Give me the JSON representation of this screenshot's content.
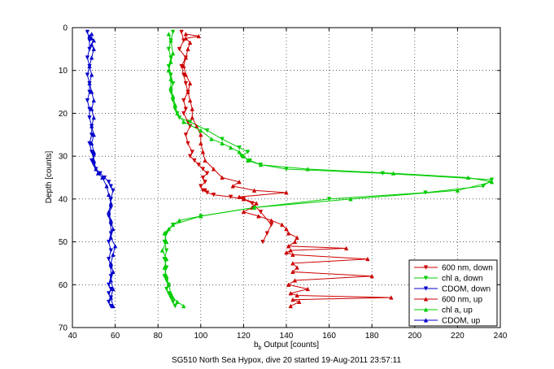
{
  "chart_data": {
    "type": "line",
    "title": "",
    "caption": "SG510 North Sea Hypox, dive 20 started 19-Aug-2011 23:57:11",
    "xlabel_main": "b",
    "xlabel_sub": "b",
    "xlabel_rest": " Output [counts]",
    "ylabel": "Depth [counts]",
    "xlim": [
      40,
      240
    ],
    "ylim": [
      0,
      70
    ],
    "y_reversed": true,
    "grid": true,
    "legend_position": "lower-right",
    "x_ticks": [
      "40",
      "60",
      "80",
      "100",
      "120",
      "140",
      "160",
      "180",
      "200",
      "220",
      "240"
    ],
    "y_ticks": [
      "0",
      "10",
      "20",
      "30",
      "40",
      "50",
      "60",
      "70"
    ],
    "series": [
      {
        "name": "600 nm, down",
        "color": "#cc0000",
        "marker": "triangle-down",
        "x": [
          91,
          92,
          90,
          93,
          91,
          92,
          93,
          94,
          92,
          93,
          92,
          94,
          95,
          93,
          94,
          96,
          95,
          97,
          99,
          101,
          103,
          101,
          102,
          100,
          101,
          102,
          103,
          106,
          114,
          120,
          124,
          128,
          133,
          131,
          129
        ],
        "y": [
          1,
          3,
          5,
          7,
          9,
          11,
          13,
          15,
          17,
          19,
          20,
          22,
          23,
          25,
          27,
          29,
          30,
          31,
          32,
          33,
          34,
          35,
          36,
          37,
          38,
          38,
          38.5,
          39,
          39.5,
          40,
          41,
          43,
          46,
          48,
          50
        ]
      },
      {
        "name": "chl a, down",
        "color": "#00cc00",
        "marker": "triangle-down",
        "x": [
          87,
          86,
          85,
          86,
          85,
          86,
          87,
          86,
          87,
          88,
          89,
          90,
          95,
          103,
          110,
          118,
          122,
          119,
          123,
          128,
          140,
          185,
          236,
          232,
          205,
          160,
          125,
          100,
          87,
          84,
          83,
          84,
          83,
          84,
          83,
          84,
          85,
          84,
          85,
          86,
          87,
          88
        ],
        "y": [
          1,
          3,
          5,
          7,
          9,
          11,
          13,
          15,
          17,
          19,
          20,
          21,
          22,
          24,
          26,
          28,
          29,
          30,
          31,
          32,
          33,
          34,
          35.5,
          37,
          38.5,
          40,
          42,
          44,
          46,
          48,
          50,
          52,
          54,
          56,
          58,
          59,
          60,
          61,
          62,
          63,
          64,
          65
        ]
      },
      {
        "name": "CDOM, down",
        "color": "#0000cc",
        "marker": "triangle-down",
        "x": [
          47,
          48,
          48,
          47,
          48,
          47,
          48,
          48,
          47,
          48,
          48,
          49,
          49,
          48,
          49,
          50,
          49,
          50,
          51,
          53,
          55,
          57,
          58,
          59,
          58,
          58,
          57,
          58,
          58,
          57,
          58,
          57,
          58,
          58,
          57,
          58,
          57,
          58,
          57,
          58
        ],
        "y": [
          1,
          3,
          5,
          7,
          9,
          11,
          13,
          15,
          17,
          19,
          21,
          23,
          25,
          27,
          29,
          30,
          31,
          32,
          33,
          34,
          35,
          36,
          37,
          38,
          40,
          42,
          44,
          46,
          48,
          50,
          52,
          54,
          56,
          58,
          60,
          61,
          62,
          63,
          64,
          65
        ]
      },
      {
        "name": "600 nm, up",
        "color": "#cc0000",
        "marker": "triangle-up",
        "x": [
          142,
          146,
          143,
          189,
          145,
          142,
          150,
          141,
          144,
          180,
          143,
          145,
          143,
          178,
          143,
          140,
          142,
          168,
          141,
          144,
          145,
          141,
          140,
          138,
          133,
          127,
          120,
          124,
          126,
          120,
          118,
          140,
          125,
          115,
          118,
          110,
          106,
          102,
          101,
          100,
          100,
          98,
          96,
          96,
          95,
          94,
          95,
          93,
          92,
          93,
          94,
          95,
          93,
          99,
          93
        ],
        "y": [
          65,
          64,
          63.5,
          63,
          62.5,
          62,
          61,
          60,
          59,
          58,
          57,
          56,
          55,
          54,
          53,
          52.5,
          52,
          51.5,
          51,
          50,
          49,
          48,
          47,
          46,
          45,
          44,
          43,
          42,
          41,
          40,
          39.5,
          38.5,
          38,
          37,
          36,
          35,
          33,
          31,
          29,
          27,
          25,
          23,
          21,
          19,
          17,
          15,
          13,
          11,
          9,
          7,
          5,
          3.5,
          2.5,
          2,
          1.5
        ]
      },
      {
        "name": "chl a, up",
        "color": "#00cc00",
        "marker": "triangle-up",
        "x": [
          92,
          89,
          87,
          86,
          85,
          84,
          83,
          84,
          82,
          84,
          83,
          85,
          87,
          90,
          100,
          125,
          170,
          220,
          236,
          225,
          190,
          150,
          128,
          122,
          120,
          118,
          114,
          110,
          105,
          100,
          92,
          89,
          88,
          87,
          86,
          86,
          85,
          86,
          87,
          86,
          85
        ],
        "y": [
          65,
          64,
          63,
          62,
          60,
          58,
          56,
          54,
          52,
          50,
          48,
          47,
          46,
          45,
          44,
          42,
          40,
          38,
          36,
          35,
          34,
          33,
          32,
          31,
          30,
          29,
          28,
          27,
          26,
          24,
          22,
          20,
          18,
          16,
          14,
          12,
          10,
          8,
          6,
          3,
          1.5
        ]
      },
      {
        "name": "CDOM, up",
        "color": "#0000cc",
        "marker": "triangle-up",
        "x": [
          59,
          58,
          59,
          58,
          59,
          58,
          59,
          60,
          58,
          59,
          58,
          57,
          58,
          57,
          56,
          54,
          52,
          51,
          50,
          50,
          49,
          50,
          49,
          50,
          49,
          50,
          49,
          48,
          49,
          48,
          49,
          50,
          49,
          50,
          49,
          48,
          49
        ],
        "y": [
          65,
          63,
          61,
          59,
          57,
          55,
          53,
          51,
          49,
          47,
          45,
          43,
          41,
          39,
          37,
          35,
          34,
          33,
          31,
          29,
          27,
          25,
          23,
          21,
          19,
          17,
          15,
          13,
          11,
          9,
          7,
          5,
          4,
          3,
          2.5,
          2,
          1.5
        ]
      }
    ]
  }
}
